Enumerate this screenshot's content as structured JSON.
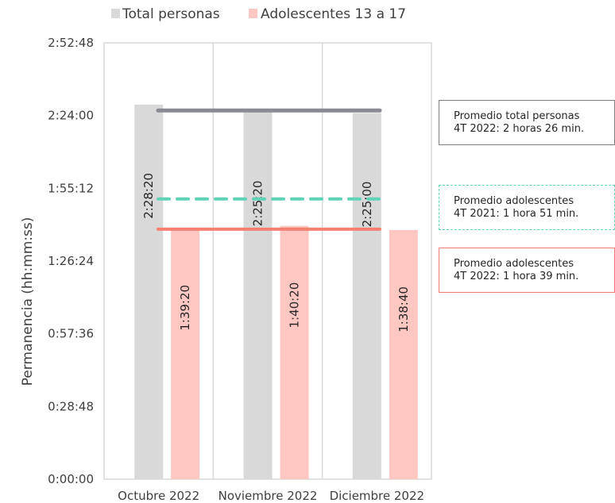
{
  "chart_data": {
    "type": "bar",
    "categories": [
      "Octubre 2022",
      "Noviembre 2022",
      "Diciembre 2022"
    ],
    "series": [
      {
        "name": "Total personas",
        "values": [
          "2:28:20",
          "2:25:20",
          "2:25:00"
        ],
        "seconds": [
          8900,
          8720,
          8700
        ],
        "color": "#d9d9d9"
      },
      {
        "name": "Adolescentes 13 a 17",
        "values": [
          "1:39:20",
          "1:40:20",
          "1:38:40"
        ],
        "seconds": [
          5960,
          6020,
          5920
        ],
        "color": "#ffc7c2"
      }
    ],
    "ylabel": "Permanencia (hh:mm:ss)",
    "yticks": [
      "0:00:00",
      "0:28:48",
      "0:57:36",
      "1:26:24",
      "1:55:12",
      "2:24:00",
      "2:52:48"
    ],
    "ytick_seconds": [
      0,
      1728,
      3456,
      5184,
      6912,
      8640,
      10368
    ],
    "ylim_seconds": [
      0,
      10368
    ],
    "grid": "vertical",
    "legend_position": "top",
    "reference_lines": [
      {
        "id": "total",
        "seconds": 8760,
        "style": "solid",
        "color": "#8a8a94",
        "label_lines": [
          "Promedio total personas",
          "4T 2022: 2 horas 26 min."
        ]
      },
      {
        "id": "ad21",
        "seconds": 6660,
        "style": "dashed",
        "color": "#5fd3b6",
        "label_lines": [
          "Promedio adolescentes",
          "4T 2021: 1 hora 51 min."
        ]
      },
      {
        "id": "ad22",
        "seconds": 5940,
        "style": "solid",
        "color": "#f5806f",
        "label_lines": [
          "Promedio adolescentes",
          "4T 2022: 1 hora 39 min."
        ]
      }
    ]
  }
}
